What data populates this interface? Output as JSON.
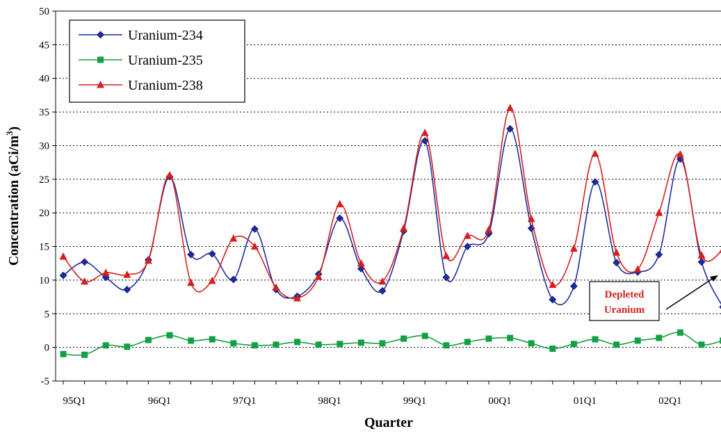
{
  "chart_data": {
    "type": "line",
    "title": "",
    "xlabel": "Quarter",
    "ylabel": "Concentration (aCi/m",
    "ylabel_sup": "3",
    "ylabel_close": ")",
    "ylim": [
      -5,
      50
    ],
    "yticks": [
      -5,
      0,
      5,
      10,
      15,
      20,
      25,
      30,
      35,
      40,
      45,
      50
    ],
    "grid": "horizontal-dotted",
    "legend_position": "top-left",
    "xticks": [
      {
        "label": "95Q1",
        "x": 0
      },
      {
        "label": "96Q1",
        "x": 4
      },
      {
        "label": "97Q1",
        "x": 8
      },
      {
        "label": "98Q1",
        "x": 12
      },
      {
        "label": "99Q1",
        "x": 16
      },
      {
        "label": "00Q1",
        "x": 20
      },
      {
        "label": "01Q1",
        "x": 24
      },
      {
        "label": "02Q1",
        "x": 28
      }
    ],
    "x": [
      0,
      1,
      2,
      3,
      4,
      5,
      6,
      7,
      8,
      9,
      10,
      11,
      12,
      13,
      14,
      15,
      16,
      17,
      18,
      19,
      20,
      21,
      22,
      23,
      24,
      25,
      26,
      27,
      28,
      29,
      30,
      31
    ],
    "series": [
      {
        "name": "Uranium-234",
        "color": "#1f2a9e",
        "marker": "diamond",
        "values": [
          10.7,
          12.7,
          10.4,
          8.6,
          13.0,
          25.4,
          13.8,
          13.9,
          10.1,
          17.6,
          8.6,
          7.6,
          10.9,
          19.2,
          11.7,
          8.4,
          17.3,
          30.7,
          10.4,
          15.0,
          16.9,
          32.5,
          17.7,
          7.1,
          9.1,
          24.6,
          12.6,
          11.2,
          13.8,
          28.0,
          12.7,
          6.0
        ]
      },
      {
        "name": "Uranium-235",
        "color": "#12a040",
        "marker": "square",
        "values": [
          -1.0,
          -1.1,
          0.3,
          0.1,
          1.1,
          1.8,
          1.0,
          1.2,
          0.6,
          0.3,
          0.4,
          0.8,
          0.4,
          0.5,
          0.7,
          0.6,
          1.3,
          1.7,
          0.3,
          0.8,
          1.3,
          1.4,
          0.6,
          -0.2,
          0.5,
          1.2,
          0.4,
          1.0,
          1.4,
          2.2,
          0.4,
          1.0
        ]
      },
      {
        "name": "Uranium-238",
        "color": "#d42020",
        "marker": "triangle",
        "values": [
          13.5,
          9.8,
          11.1,
          10.8,
          12.9,
          25.6,
          9.6,
          9.9,
          16.2,
          15.0,
          8.9,
          7.3,
          10.5,
          21.3,
          12.5,
          9.8,
          17.7,
          31.9,
          13.6,
          16.6,
          17.5,
          35.6,
          19.1,
          9.3,
          14.7,
          28.8,
          14.1,
          11.6,
          20.0,
          28.7,
          13.7,
          14.5
        ]
      }
    ],
    "annotation": {
      "line1": "Depleted",
      "line2": "Uranium",
      "color": "#d42020"
    }
  }
}
